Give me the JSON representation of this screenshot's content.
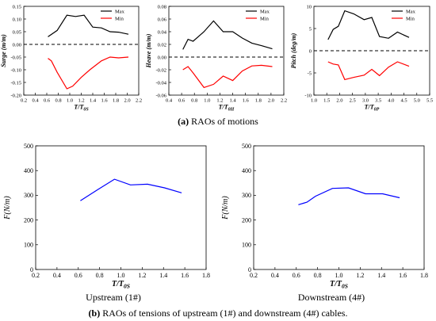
{
  "figure": {
    "caption_a": {
      "letter": "(a)",
      "text": " RAOs of motions"
    },
    "caption_b": {
      "letter": "(b)",
      "text": " RAOs of tensions of upstream (1#) and downstream (4#) cables."
    },
    "sublabel_upstream": "Upstream (1#)",
    "sublabel_downstream": "Downstream (4#)"
  },
  "colors": {
    "max": "#000000",
    "min": "#ff0000",
    "tension": "#0000ff",
    "zero": "#000000"
  },
  "chart_data": [
    {
      "type": "line",
      "ylabel": "Surge (m/m)",
      "xlabel": "T/T0S",
      "xlim": [
        0.2,
        2.2
      ],
      "ylim": [
        -0.2,
        0.15
      ],
      "xticks": [
        "0.2",
        "0.4",
        "0.6",
        "0.8",
        "1.0",
        "1.2",
        "1.4",
        "1.6",
        "1.8",
        "2.0",
        "2.2"
      ],
      "yticks": [
        "-0.20",
        "-0.15",
        "-0.10",
        "-0.05",
        "0.00",
        "0.05",
        "0.10",
        "0.15"
      ],
      "legend": "top-right",
      "zero_line": true,
      "series": [
        {
          "name": "Max",
          "x": [
            0.62,
            0.78,
            0.95,
            1.1,
            1.25,
            1.4,
            1.55,
            1.7,
            1.85,
            2.02
          ],
          "y": [
            0.03,
            0.055,
            0.115,
            0.11,
            0.115,
            0.068,
            0.065,
            0.05,
            0.048,
            0.04
          ]
        },
        {
          "name": "Min",
          "x": [
            0.62,
            0.68,
            0.78,
            0.95,
            1.05,
            1.2,
            1.35,
            1.55,
            1.7,
            1.85,
            2.02
          ],
          "y": [
            -0.055,
            -0.065,
            -0.11,
            -0.175,
            -0.165,
            -0.13,
            -0.1,
            -0.065,
            -0.05,
            -0.053,
            -0.05
          ]
        }
      ]
    },
    {
      "type": "line",
      "ylabel": "Heave (m/m)",
      "xlabel": "T/T0H",
      "xlim": [
        0.4,
        2.2
      ],
      "ylim": [
        -0.06,
        0.08
      ],
      "xticks": [
        "0.4",
        "0.6",
        "0.8",
        "1.0",
        "1.2",
        "1.4",
        "1.6",
        "1.8",
        "2.0",
        "2.2"
      ],
      "yticks": [
        "-0.06",
        "-0.04",
        "-0.02",
        "0.00",
        "0.02",
        "0.04",
        "0.06",
        "0.08"
      ],
      "legend": "top-right",
      "zero_line": true,
      "series": [
        {
          "name": "Max",
          "x": [
            0.62,
            0.7,
            0.78,
            0.95,
            1.1,
            1.25,
            1.4,
            1.55,
            1.7,
            1.85,
            2.02
          ],
          "y": [
            0.012,
            0.028,
            0.025,
            0.04,
            0.057,
            0.04,
            0.04,
            0.03,
            0.022,
            0.018,
            0.013
          ]
        },
        {
          "name": "Min",
          "x": [
            0.62,
            0.7,
            0.78,
            0.95,
            1.1,
            1.25,
            1.4,
            1.55,
            1.7,
            1.85,
            2.02
          ],
          "y": [
            -0.02,
            -0.015,
            -0.025,
            -0.048,
            -0.043,
            -0.03,
            -0.037,
            -0.022,
            -0.014,
            -0.013,
            -0.015
          ]
        }
      ]
    },
    {
      "type": "line",
      "ylabel": "Pitch (deg/m)",
      "xlabel": "T/T0P",
      "xlim": [
        1.0,
        5.5
      ],
      "ylim": [
        -10,
        10
      ],
      "xticks": [
        "1.0",
        "1.5",
        "2.0",
        "2.5",
        "3.0",
        "3.5",
        "4.0",
        "4.5",
        "5.0",
        "5.5"
      ],
      "yticks": [
        "-10",
        "-5",
        "0",
        "5",
        "10"
      ],
      "legend": "top-right",
      "zero_line": true,
      "series": [
        {
          "name": "Max",
          "x": [
            1.55,
            1.75,
            1.95,
            2.2,
            2.55,
            2.95,
            3.25,
            3.55,
            3.9,
            4.25,
            4.7
          ],
          "y": [
            2.5,
            4.8,
            5.5,
            9.0,
            8.3,
            7.0,
            7.5,
            3.2,
            2.8,
            4.2,
            3.0
          ]
        },
        {
          "name": "Min",
          "x": [
            1.55,
            1.75,
            1.95,
            2.2,
            2.55,
            2.95,
            3.25,
            3.55,
            3.9,
            4.25,
            4.7
          ],
          "y": [
            -2.5,
            -3.0,
            -3.2,
            -6.5,
            -6.0,
            -5.5,
            -4.2,
            -5.6,
            -3.7,
            -2.5,
            -3.5
          ]
        }
      ]
    },
    {
      "type": "line",
      "ylabel": "F(N/m)",
      "xlabel": "T/T0S",
      "xlim": [
        0.2,
        1.8
      ],
      "ylim": [
        0,
        500
      ],
      "xticks": [
        "0.2",
        "0.4",
        "0.6",
        "0.8",
        "1.0",
        "1.2",
        "1.4",
        "1.6",
        "1.8"
      ],
      "yticks": [
        "0",
        "100",
        "200",
        "300",
        "400",
        "500"
      ],
      "series": [
        {
          "name": "",
          "x": [
            0.62,
            0.78,
            0.94,
            1.09,
            1.25,
            1.41,
            1.57
          ],
          "y": [
            278,
            322,
            365,
            342,
            345,
            330,
            310
          ]
        }
      ]
    },
    {
      "type": "line",
      "ylabel": "F(N/m)",
      "xlabel": "T/T0S",
      "xlim": [
        0.2,
        1.8
      ],
      "ylim": [
        0,
        500
      ],
      "xticks": [
        "0.2",
        "0.4",
        "0.6",
        "0.8",
        "1.0",
        "1.2",
        "1.4",
        "1.6",
        "1.8"
      ],
      "yticks": [
        "0",
        "100",
        "200",
        "300",
        "400",
        "500"
      ],
      "series": [
        {
          "name": "",
          "x": [
            0.62,
            0.7,
            0.78,
            0.94,
            1.09,
            1.25,
            1.41,
            1.57
          ],
          "y": [
            262,
            272,
            296,
            328,
            330,
            306,
            306,
            290
          ]
        }
      ]
    }
  ]
}
